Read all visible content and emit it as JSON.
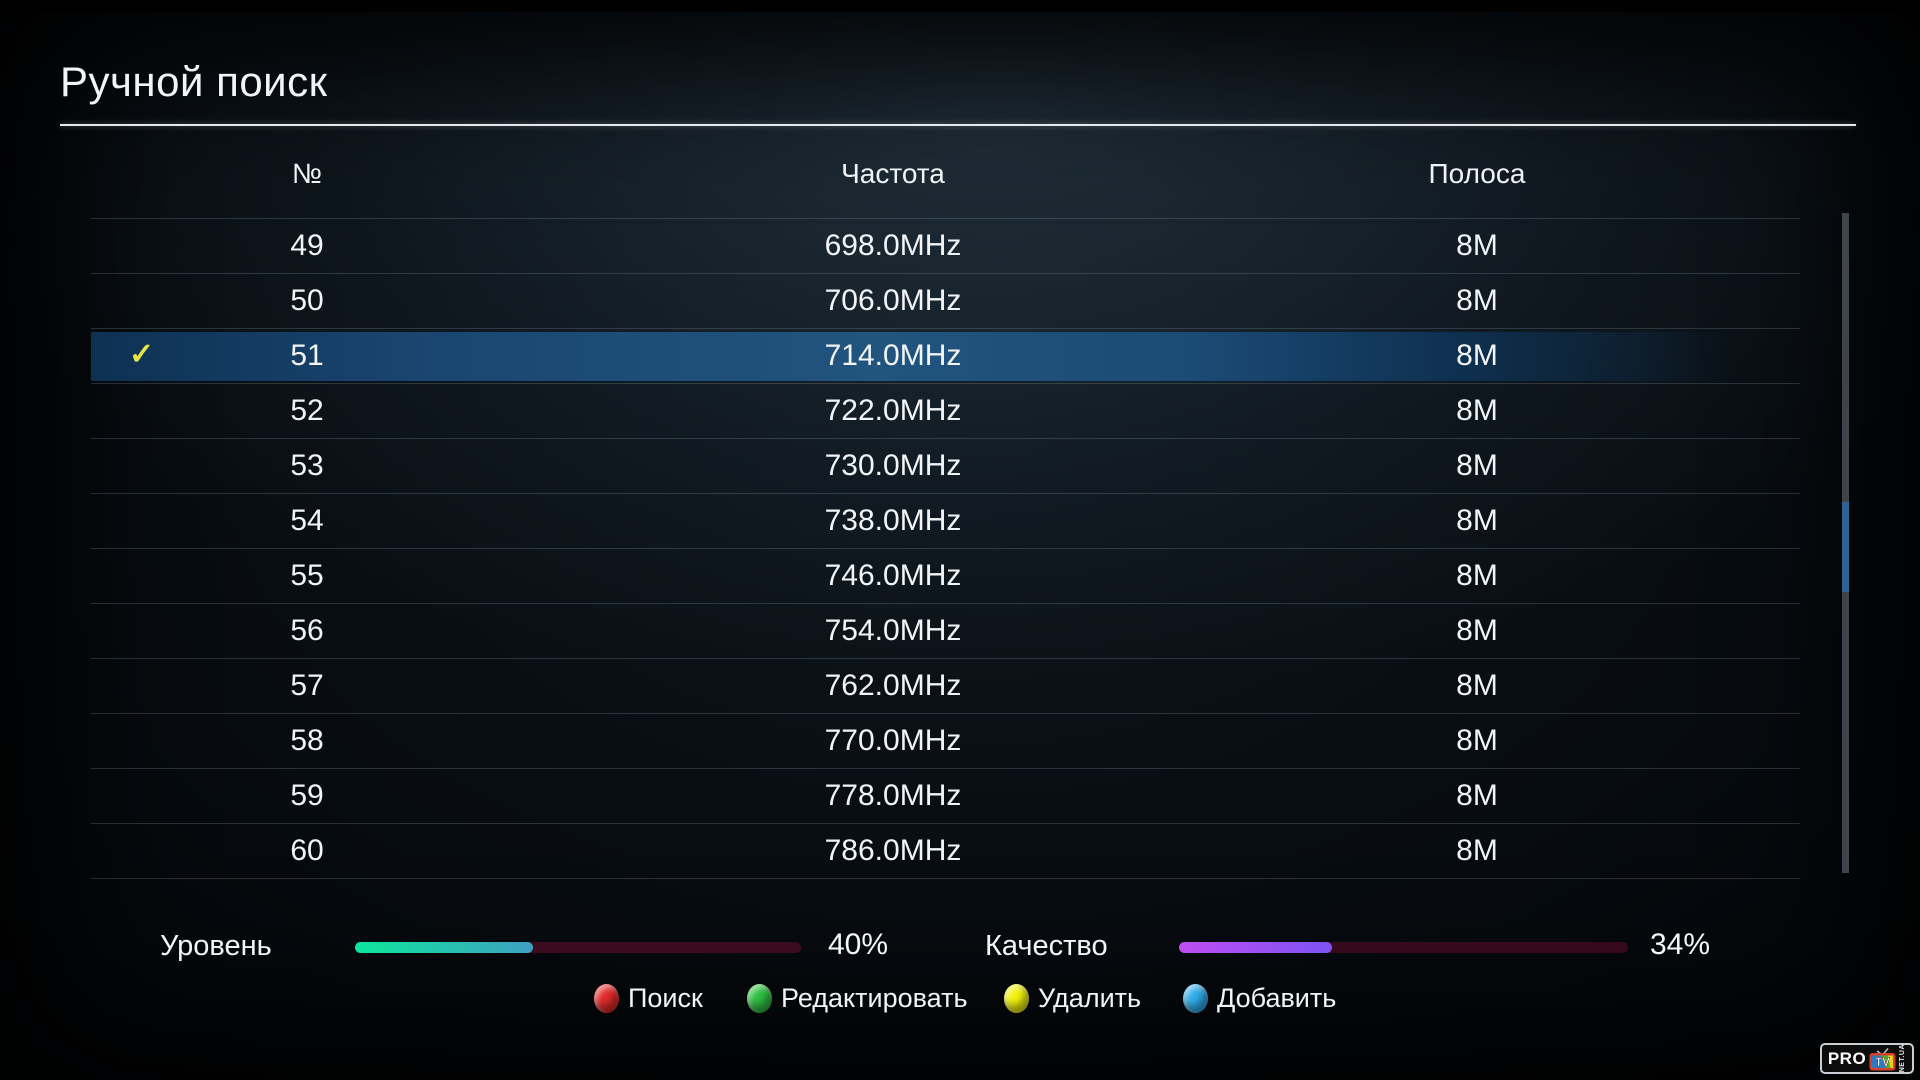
{
  "title": "Ручной поиск",
  "table": {
    "columns": {
      "num": "№",
      "freq": "Частота",
      "band": "Полоса"
    },
    "rows": [
      {
        "num": "49",
        "freq": "698.0MHz",
        "band": "8M"
      },
      {
        "num": "50",
        "freq": "706.0MHz",
        "band": "8M"
      },
      {
        "num": "51",
        "freq": "714.0MHz",
        "band": "8M"
      },
      {
        "num": "52",
        "freq": "722.0MHz",
        "band": "8M"
      },
      {
        "num": "53",
        "freq": "730.0MHz",
        "band": "8M"
      },
      {
        "num": "54",
        "freq": "738.0MHz",
        "band": "8M"
      },
      {
        "num": "55",
        "freq": "746.0MHz",
        "band": "8M"
      },
      {
        "num": "56",
        "freq": "754.0MHz",
        "band": "8M"
      },
      {
        "num": "57",
        "freq": "762.0MHz",
        "band": "8M"
      },
      {
        "num": "58",
        "freq": "770.0MHz",
        "band": "8M"
      },
      {
        "num": "59",
        "freq": "778.0MHz",
        "band": "8M"
      },
      {
        "num": "60",
        "freq": "786.0MHz",
        "band": "8M"
      }
    ],
    "selected_row": "51",
    "selected_color": "#1e507e",
    "check_color": "#e8e445"
  },
  "meters": [
    {
      "label": "Уровень",
      "value": "40%",
      "percent": 40,
      "fill_start": "#0de69b",
      "fill_end": "#3fa0c2",
      "track": "#3a0c1e"
    },
    {
      "label": "Качество",
      "value": "34%",
      "percent": 34,
      "fill_start": "#bf4df2",
      "fill_end": "#7c53f2",
      "track": "#36091b"
    }
  ],
  "legend": [
    {
      "name": "red",
      "color": "#e32b2b",
      "label": "Поиск"
    },
    {
      "name": "green",
      "color": "#2fc043",
      "label": "Редактировать"
    },
    {
      "name": "yellow",
      "color": "#f2f20c",
      "label": "Удалить"
    },
    {
      "name": "blue",
      "color": "#31aeeb",
      "label": "Добавить"
    }
  ],
  "logo": {
    "pro": "PRO",
    "tv": "TV",
    "suffix": "NET.UA"
  }
}
